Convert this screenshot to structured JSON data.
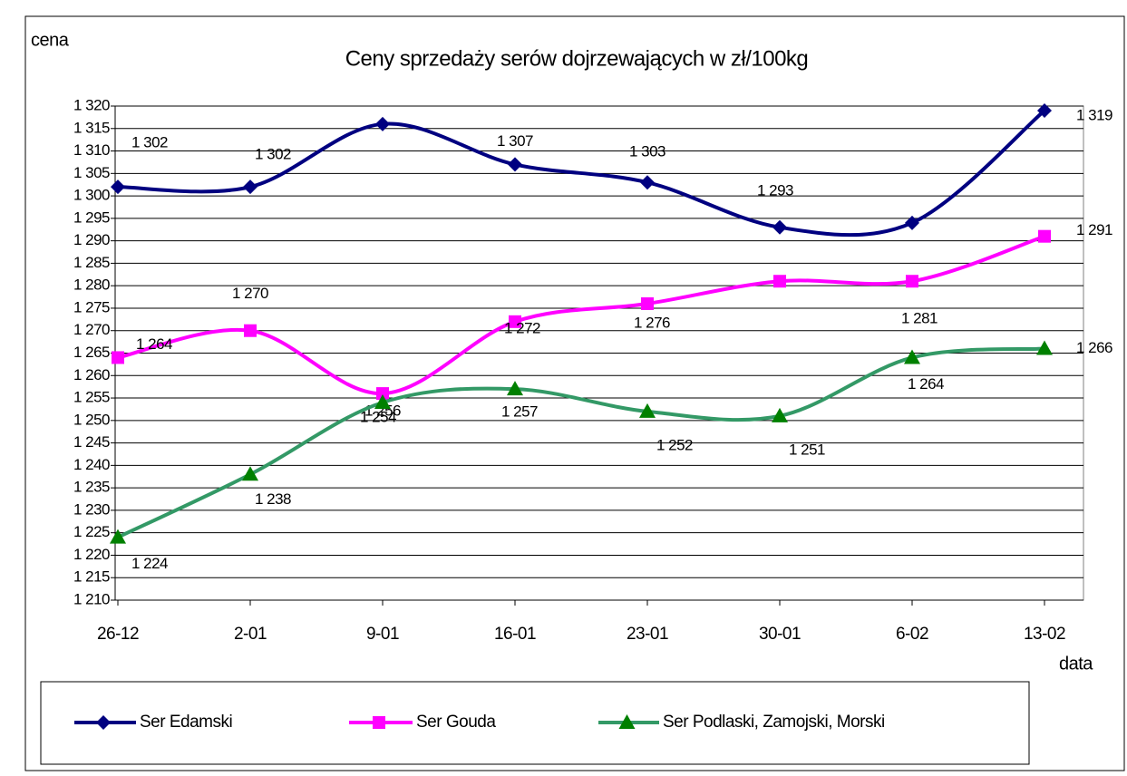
{
  "chart_data": {
    "type": "line",
    "title": "Ceny sprzedaży serów dojrzewających w zł/100kg",
    "y_label": "cena",
    "x_label": "data",
    "categories": [
      "26-12",
      "2-01",
      "9-01",
      "16-01",
      "23-01",
      "30-01",
      "6-02",
      "13-02"
    ],
    "ylim": [
      1210,
      1320
    ],
    "yticks": [
      {
        "value": 1210,
        "label": "1 210"
      },
      {
        "value": 1215,
        "label": "1 215"
      },
      {
        "value": 1220,
        "label": "1 220"
      },
      {
        "value": 1225,
        "label": "1 225"
      },
      {
        "value": 1230,
        "label": "1 230"
      },
      {
        "value": 1235,
        "label": "1 235"
      },
      {
        "value": 1240,
        "label": "1 240"
      },
      {
        "value": 1245,
        "label": "1 245"
      },
      {
        "value": 1250,
        "label": "1 250"
      },
      {
        "value": 1255,
        "label": "1 255"
      },
      {
        "value": 1260,
        "label": "1 260"
      },
      {
        "value": 1265,
        "label": "1 265"
      },
      {
        "value": 1270,
        "label": "1 270"
      },
      {
        "value": 1275,
        "label": "1 275"
      },
      {
        "value": 1280,
        "label": "1 280"
      },
      {
        "value": 1285,
        "label": "1 285"
      },
      {
        "value": 1290,
        "label": "1 290"
      },
      {
        "value": 1295,
        "label": "1 295"
      },
      {
        "value": 1300,
        "label": "1 300"
      },
      {
        "value": 1305,
        "label": "1 305"
      },
      {
        "value": 1310,
        "label": "1 310"
      },
      {
        "value": 1315,
        "label": "1 315"
      },
      {
        "value": 1320,
        "label": "1 320"
      }
    ],
    "grid": true,
    "legend": "bottom",
    "series": [
      {
        "name": "Ser Edamski",
        "color": "#000080",
        "marker": "diamond",
        "values": [
          1302,
          1302,
          1316,
          1307,
          1303,
          1293,
          1294,
          1319
        ],
        "value_labels": [
          "1 302",
          "1 302",
          null,
          "1 307",
          "1 303",
          "1 293",
          null,
          "1 319"
        ]
      },
      {
        "name": "Ser Gouda",
        "color": "#ff00ff",
        "marker": "square",
        "values": [
          1264,
          1270,
          1256,
          1272,
          1276,
          1281,
          1281,
          1291
        ],
        "value_labels": [
          "1 264",
          "1 270",
          "1 256",
          "1 272",
          "1 276",
          null,
          "1 281",
          "1 291"
        ]
      },
      {
        "name": "Ser Podlaski, Zamojski, Morski",
        "color": "#339966",
        "marker_color": "#008000",
        "marker": "triangle",
        "values": [
          1224,
          1238,
          1254,
          1257,
          1252,
          1251,
          1264,
          1266
        ],
        "value_labels": [
          "1 224",
          "1 238",
          "1 254",
          "1 257",
          "1 252",
          "1 251",
          "1 264",
          "1 266"
        ]
      }
    ]
  }
}
